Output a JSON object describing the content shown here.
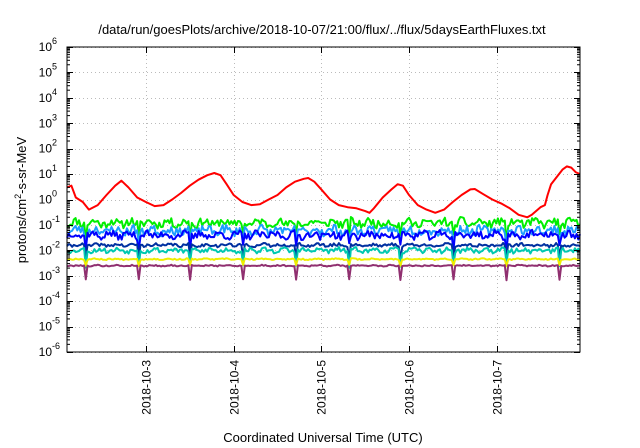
{
  "chart_data": {
    "type": "line",
    "title": "/data/run/goesPlots/archive/2018-10-07/21:00/flux/../flux/5daysEarthFluxes.txt",
    "xlabel": "Coordinated Universal Time (UTC)",
    "ylabel_base": "protons/cm",
    "ylabel_exp": "2",
    "ylabel_rest": "-s-sr-MeV",
    "y_scale": "log",
    "ylim": [
      1e-06,
      1000000.0
    ],
    "y_ticks": [
      {
        "base": "10",
        "exp": "6",
        "value": 1000000.0
      },
      {
        "base": "10",
        "exp": "5",
        "value": 100000.0
      },
      {
        "base": "10",
        "exp": "4",
        "value": 10000.0
      },
      {
        "base": "10",
        "exp": "3",
        "value": 1000.0
      },
      {
        "base": "10",
        "exp": "2",
        "value": 100.0
      },
      {
        "base": "10",
        "exp": "1",
        "value": 10.0
      },
      {
        "base": "10",
        "exp": "0",
        "value": 1
      },
      {
        "base": "10",
        "exp": "-1",
        "value": 0.1
      },
      {
        "base": "10",
        "exp": "-2",
        "value": 0.01
      },
      {
        "base": "10",
        "exp": "-3",
        "value": 0.001
      },
      {
        "base": "10",
        "exp": "-4",
        "value": 0.0001
      },
      {
        "base": "10",
        "exp": "-5",
        "value": 1e-05
      },
      {
        "base": "10",
        "exp": "-6",
        "value": 1e-06
      }
    ],
    "x_range_days": [
      2.1,
      7.95
    ],
    "x_ticks": [
      {
        "label": "2018-10-3",
        "day": 3
      },
      {
        "label": "2018-10-4",
        "day": 4
      },
      {
        "label": "2018-10-5",
        "day": 5
      },
      {
        "label": "2018-10-6",
        "day": 6
      },
      {
        "label": "2018-10-7",
        "day": 7
      }
    ],
    "grid": true,
    "legend": "none",
    "series": [
      {
        "color": "#ff0000",
        "points": [
          [
            2.1,
            3.0
          ],
          [
            2.15,
            3.5
          ],
          [
            2.2,
            1.2
          ],
          [
            2.28,
            0.8
          ],
          [
            2.35,
            0.4
          ],
          [
            2.45,
            0.6
          ],
          [
            2.55,
            1.5
          ],
          [
            2.65,
            3.5
          ],
          [
            2.72,
            5.5
          ],
          [
            2.8,
            3.0
          ],
          [
            2.9,
            1.2
          ],
          [
            3.0,
            0.8
          ],
          [
            3.1,
            0.55
          ],
          [
            3.2,
            0.6
          ],
          [
            3.3,
            1.0
          ],
          [
            3.4,
            1.8
          ],
          [
            3.5,
            3.5
          ],
          [
            3.6,
            6.0
          ],
          [
            3.7,
            9.0
          ],
          [
            3.78,
            11.0
          ],
          [
            3.85,
            9.0
          ],
          [
            3.92,
            4.0
          ],
          [
            4.0,
            1.5
          ],
          [
            4.1,
            0.8
          ],
          [
            4.2,
            0.6
          ],
          [
            4.3,
            0.65
          ],
          [
            4.4,
            1.0
          ],
          [
            4.5,
            1.5
          ],
          [
            4.6,
            3.0
          ],
          [
            4.7,
            5.0
          ],
          [
            4.8,
            6.5
          ],
          [
            4.85,
            7.0
          ],
          [
            4.92,
            5.0
          ],
          [
            5.0,
            2.5
          ],
          [
            5.1,
            1.0
          ],
          [
            5.2,
            0.6
          ],
          [
            5.3,
            0.5
          ],
          [
            5.4,
            0.45
          ],
          [
            5.5,
            0.35
          ],
          [
            5.55,
            0.3
          ],
          [
            5.6,
            0.45
          ],
          [
            5.7,
            1.2
          ],
          [
            5.8,
            2.5
          ],
          [
            5.87,
            4.0
          ],
          [
            5.93,
            3.5
          ],
          [
            6.0,
            1.5
          ],
          [
            6.1,
            0.6
          ],
          [
            6.2,
            0.4
          ],
          [
            6.3,
            0.3
          ],
          [
            6.4,
            0.4
          ],
          [
            6.5,
            0.8
          ],
          [
            6.6,
            1.5
          ],
          [
            6.7,
            2.5
          ],
          [
            6.75,
            2.6
          ],
          [
            6.85,
            1.6
          ],
          [
            6.95,
            1.0
          ],
          [
            7.05,
            0.7
          ],
          [
            7.15,
            0.45
          ],
          [
            7.25,
            0.25
          ],
          [
            7.35,
            0.2
          ],
          [
            7.4,
            0.25
          ],
          [
            7.5,
            0.5
          ],
          [
            7.55,
            0.6
          ],
          [
            7.58,
            1.5
          ],
          [
            7.62,
            4.0
          ],
          [
            7.66,
            6.0
          ],
          [
            7.7,
            9.0
          ],
          [
            7.75,
            15.0
          ],
          [
            7.8,
            20.0
          ],
          [
            7.85,
            18.0
          ],
          [
            7.9,
            12.0
          ],
          [
            7.95,
            10.0
          ]
        ]
      },
      {
        "color": "#00ee00",
        "level": 0.12,
        "spread": 0.32,
        "dip": 0.5,
        "seed": 11
      },
      {
        "color": "#1c9dff",
        "level": 0.06,
        "spread": 0.34,
        "dip": 0.45,
        "seed": 23
      },
      {
        "color": "#0000ff",
        "level": 0.04,
        "spread": 0.28,
        "dip": 0.45,
        "seed": 37
      },
      {
        "color": "#0030a0",
        "level": 0.016,
        "spread": 0.12,
        "dip": 0.5,
        "seed": 41
      },
      {
        "color": "#00c8b0",
        "level": 0.01,
        "spread": 0.18,
        "dip": 0.6,
        "seed": 53
      },
      {
        "color": "#eeee00",
        "level": 0.0045,
        "spread": 0.05,
        "dip": 0.25,
        "seed": 67
      },
      {
        "color": "#903070",
        "level": 0.0025,
        "spread": 0.05,
        "dip": 0.55,
        "seed": 79
      }
    ]
  }
}
